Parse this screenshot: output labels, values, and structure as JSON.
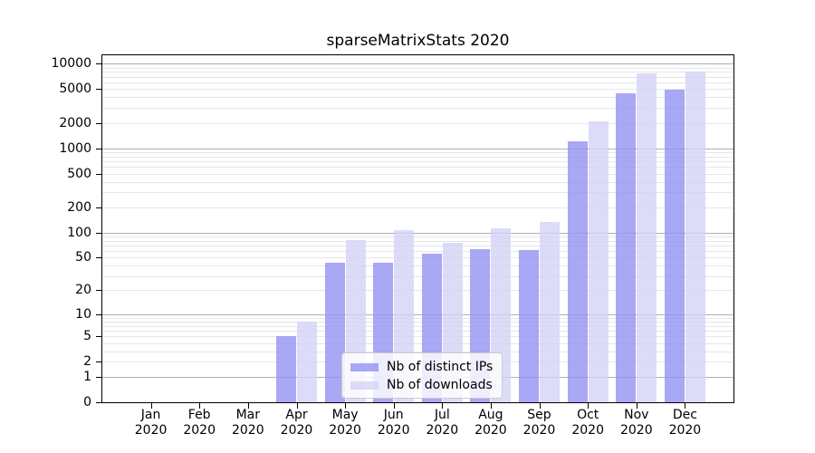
{
  "chart_data": {
    "type": "bar",
    "title": "sparseMatrixStats 2020",
    "x_year": "2020",
    "categories": [
      "Jan",
      "Feb",
      "Mar",
      "Apr",
      "May",
      "Jun",
      "Jul",
      "Aug",
      "Sep",
      "Oct",
      "Nov",
      "Dec"
    ],
    "series": [
      {
        "name": "Nb of distinct IPs",
        "color": "#9292f2",
        "alpha": 0.8,
        "values": [
          0,
          0,
          0,
          5,
          44,
          43,
          56,
          63,
          62,
          1210,
          4510,
          4980
        ]
      },
      {
        "name": "Nb of downloads",
        "color": "#d3d3f6",
        "alpha": 0.8,
        "values": [
          0,
          0,
          0,
          8,
          82,
          107,
          75,
          113,
          133,
          2070,
          7620,
          8150
        ]
      }
    ],
    "y_axis": {
      "scale": "log1p",
      "tick_values": [
        0,
        1,
        2,
        5,
        10,
        20,
        50,
        100,
        200,
        500,
        1000,
        2000,
        5000,
        10000
      ],
      "major_grid_values": [
        1,
        10,
        100,
        1000,
        10000
      ],
      "minor_grid_multiples": [
        2,
        3,
        4,
        5,
        6,
        7,
        8,
        9
      ],
      "minor_grid_decades": [
        1,
        10,
        100,
        1000
      ]
    },
    "grid": true,
    "legend_position": "lower center"
  },
  "colors": {
    "major_grid": "#b0b0b0",
    "minor_grid": "#e6e6e6",
    "spine": "#000000",
    "background": "#ffffff"
  }
}
